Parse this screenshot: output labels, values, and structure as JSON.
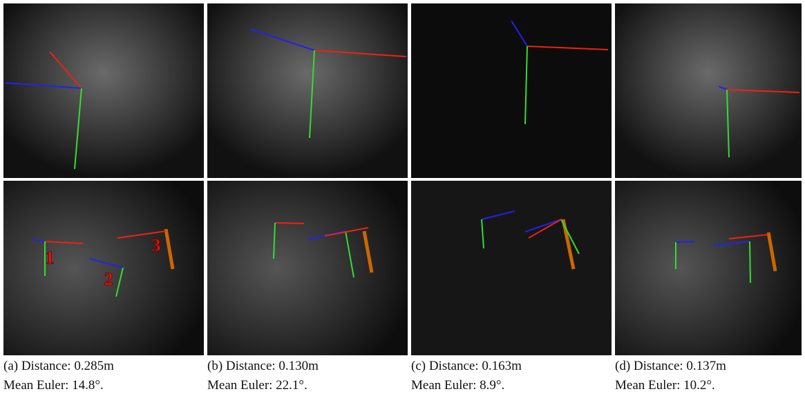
{
  "figure": {
    "panels": [
      {
        "caption_line1": "(a) Distance: 0.285m",
        "caption_line2": "Mean Euler: 14.8°."
      },
      {
        "caption_line1": "(b) Distance: 0.130m",
        "caption_line2": "Mean Euler: 22.1°."
      },
      {
        "caption_line1": "(c) Distance: 0.163m",
        "caption_line2": "Mean Euler: 8.9°."
      },
      {
        "caption_line1": "(d) Distance: 0.137m",
        "caption_line2": "Mean Euler: 10.2°."
      }
    ],
    "annotations": [
      "1",
      "2",
      "3"
    ]
  }
}
